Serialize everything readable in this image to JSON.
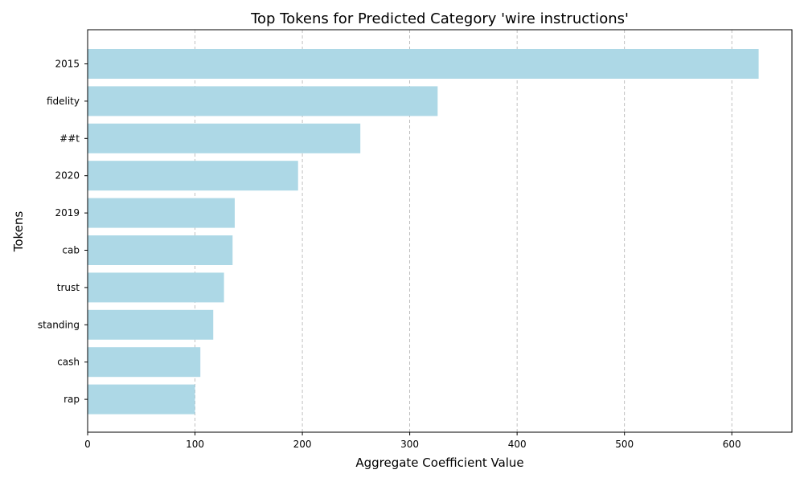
{
  "chart_data": {
    "type": "bar",
    "orientation": "horizontal",
    "title": "Top Tokens for Predicted Category 'wire instructions'",
    "xlabel": "Aggregate Coefficient Value",
    "ylabel": "Tokens",
    "categories": [
      "2015",
      "fidelity",
      "##t",
      "2020",
      "2019",
      "cab",
      "trust",
      "standing",
      "cash",
      "rap"
    ],
    "values": [
      625,
      326,
      254,
      196,
      137,
      135,
      127,
      117,
      105,
      100
    ],
    "xlim": [
      0,
      656
    ],
    "xticks": [
      0,
      100,
      200,
      300,
      400,
      500,
      600
    ],
    "grid": "x-dashed",
    "bar_color": "#add8e6",
    "grid_color": "#b0b0b0",
    "legend": "none"
  }
}
